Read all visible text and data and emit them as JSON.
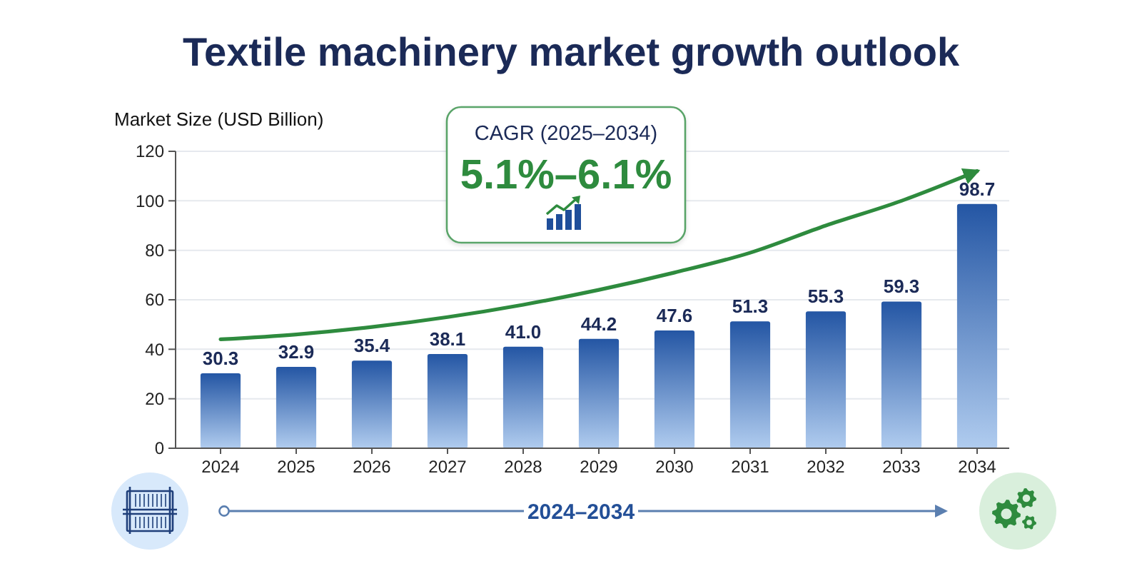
{
  "chart_data": {
    "type": "bar",
    "title": "Textile machinery market growth outlook",
    "ylabel": "Market Size (USD Billion)",
    "categories": [
      "2024",
      "2025",
      "2026",
      "2027",
      "2028",
      "2029",
      "2030",
      "2031",
      "2032",
      "2033",
      "2034"
    ],
    "series": [
      {
        "color": "#2456a4",
        "values": [
          30.3,
          32.9,
          35.4,
          38.1,
          41.0,
          44.2,
          47.6,
          51.3,
          55.3,
          59.3,
          98.7
        ],
        "value_labels": [
          "30.3",
          "32.9",
          "35.4",
          "38.1",
          "41.0",
          "44.2",
          "47.6",
          "51.3",
          "55.3",
          "59.3",
          "98.7"
        ]
      },
      {
        "type": "line",
        "color": "#2e8b3e",
        "values": [
          44,
          46,
          49,
          53,
          58,
          64,
          71,
          79,
          90,
          100,
          112
        ]
      }
    ],
    "ylim": [
      0,
      120
    ],
    "yticks": [
      0,
      20,
      40,
      60,
      80,
      100,
      120
    ],
    "grid": "y",
    "annotations": [
      "CAGR (2025–2034)",
      "5.1%–6.1%",
      "2024–2034"
    ]
  }
}
